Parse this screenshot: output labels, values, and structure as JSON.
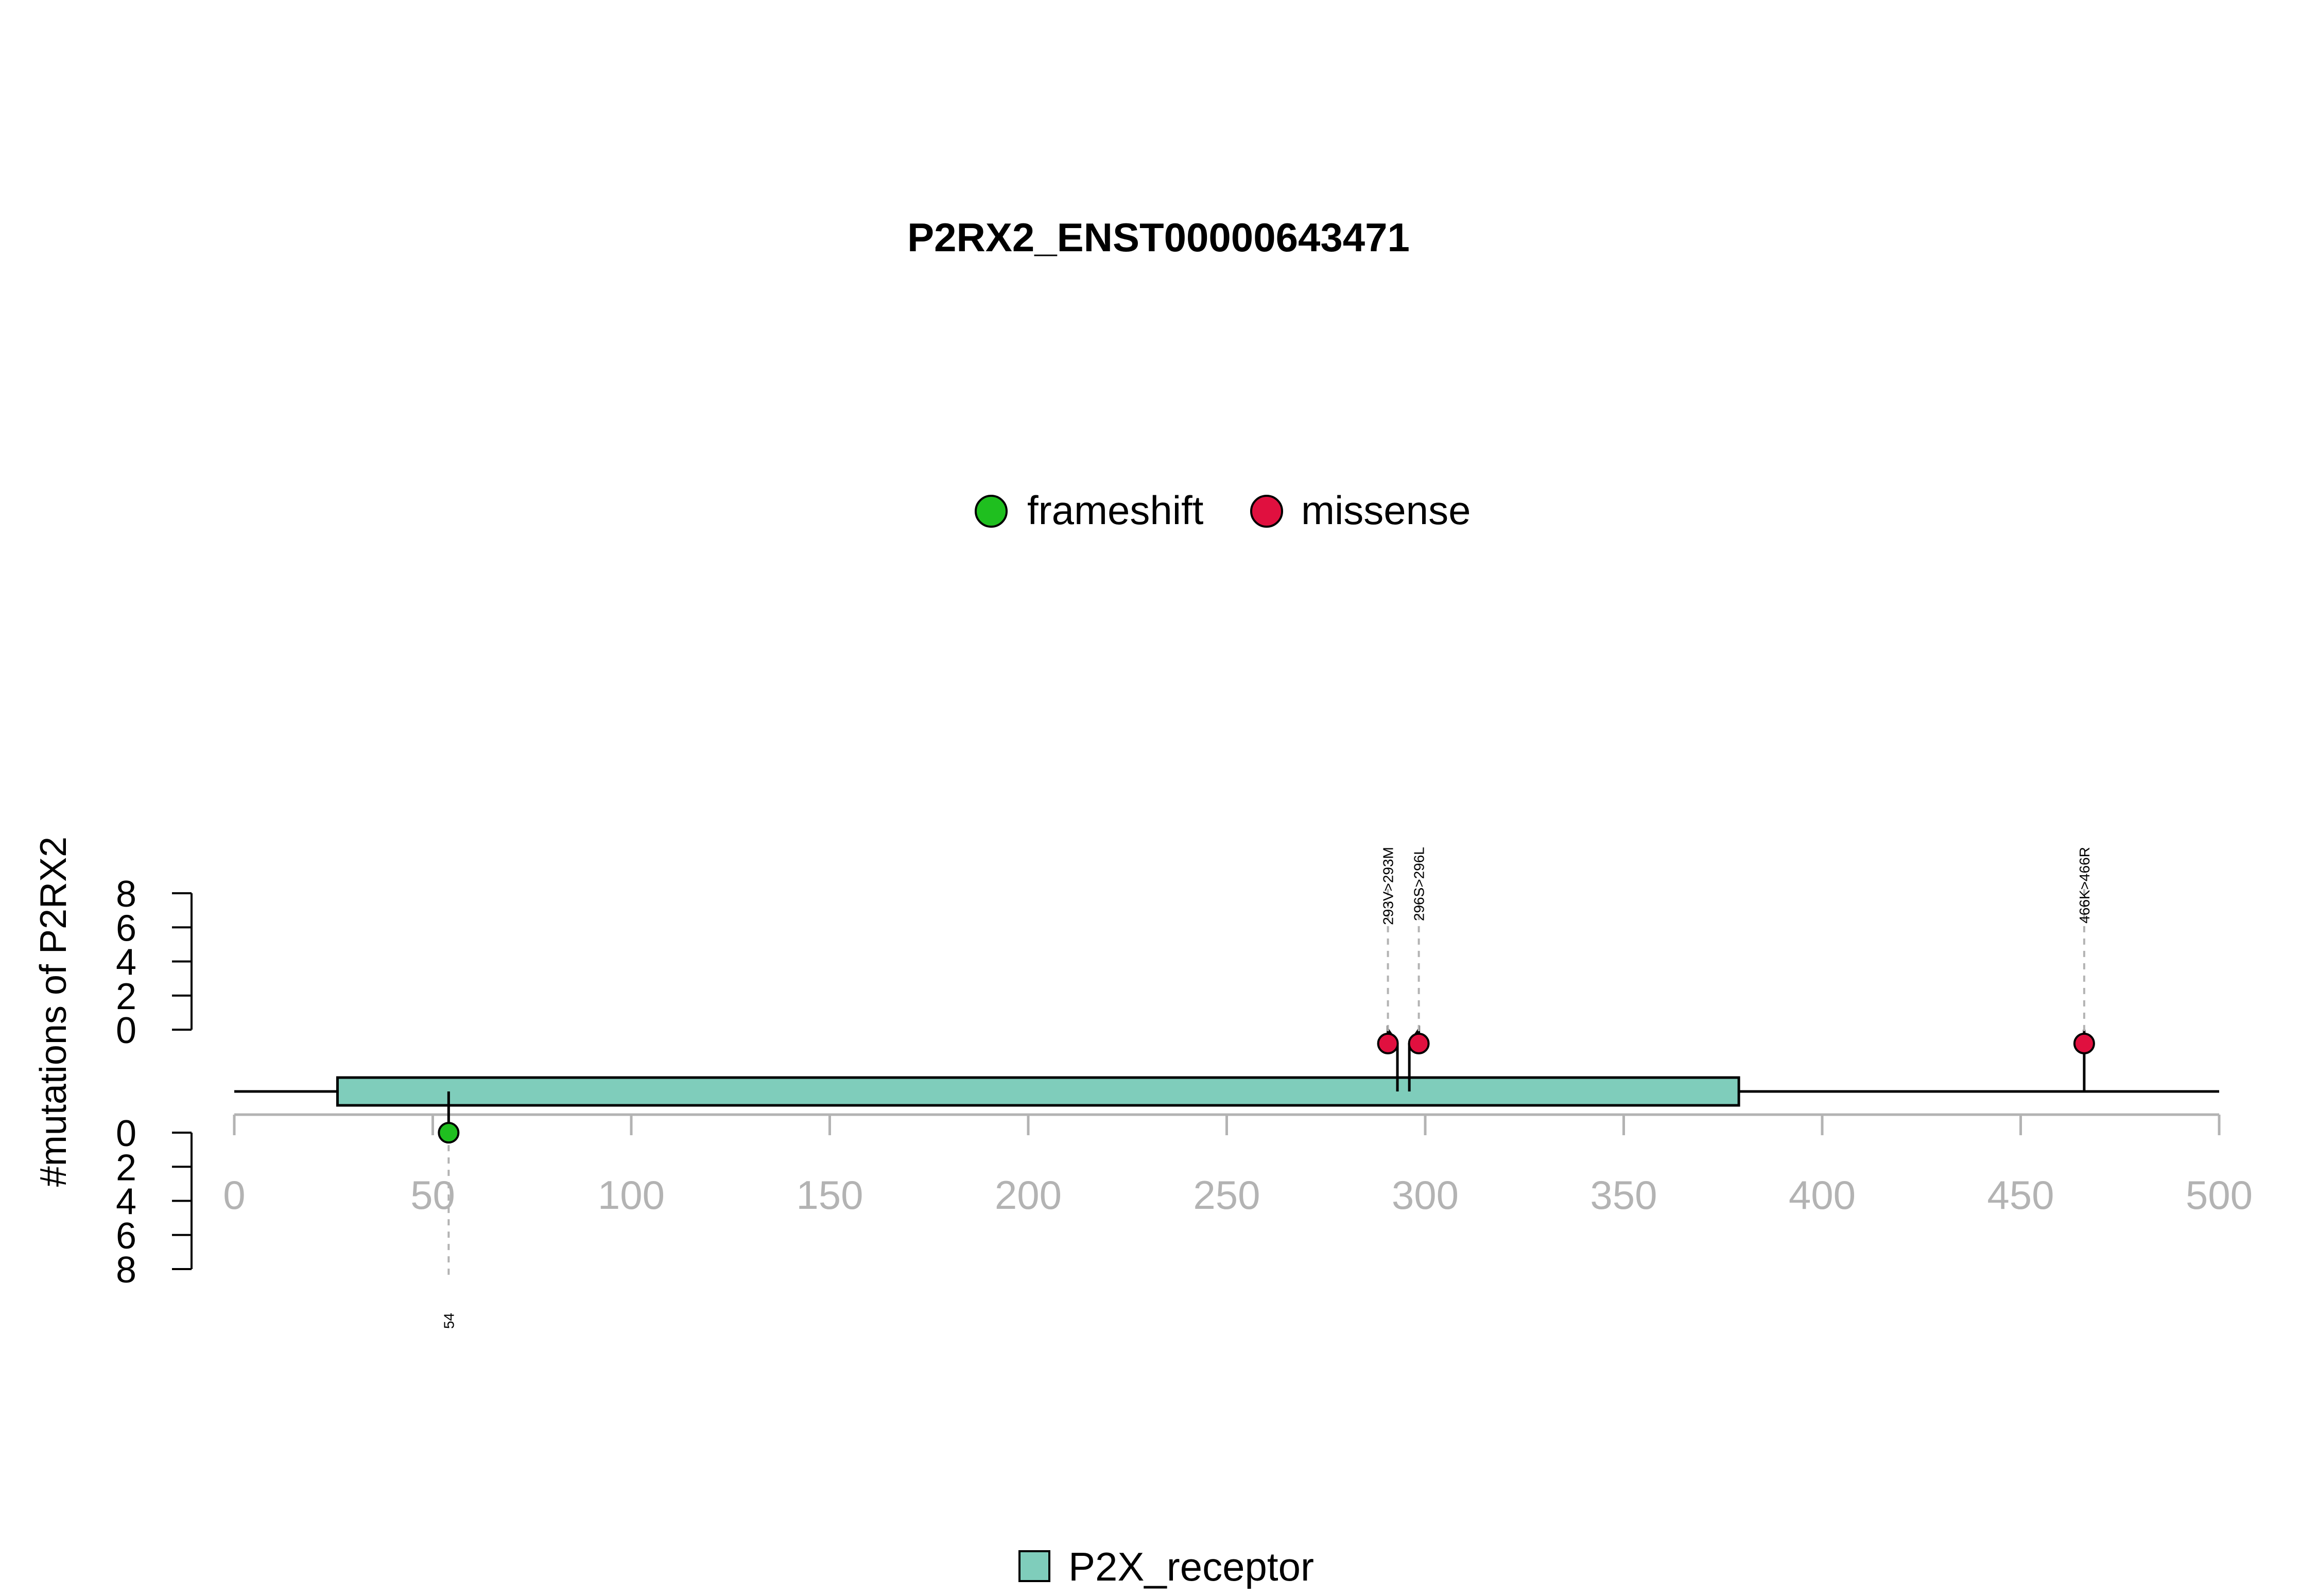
{
  "chart_data": {
    "type": "lollipop",
    "title": "P2RX2_ENST00000643471",
    "ylabel": "#mutations of P2RX2",
    "xlim": [
      0,
      500
    ],
    "x_ticks": [
      "0",
      "50",
      "100",
      "150",
      "200",
      "250",
      "300",
      "350",
      "400",
      "450",
      "500"
    ],
    "y_ticks_upper": [
      "0",
      "2",
      "4",
      "6",
      "8"
    ],
    "y_ticks_lower": [
      "0",
      "2",
      "4",
      "6",
      "8"
    ],
    "ylim": [
      0,
      8
    ],
    "legend_mutation": [
      {
        "label": "frameshift",
        "color": "#1fbf1f"
      },
      {
        "label": "missense",
        "color": "#e0103f"
      }
    ],
    "domains": [
      {
        "name": "P2X_receptor",
        "start": 26,
        "end": 379,
        "color": "#7fcdbb"
      }
    ],
    "protein_length": 500,
    "mutations": [
      {
        "position": 54,
        "label": "54",
        "type": "frameshift",
        "count": 1,
        "side": "lower"
      },
      {
        "position": 293,
        "label": "293V>293M",
        "type": "missense",
        "count": 1,
        "side": "upper"
      },
      {
        "position": 296,
        "label": "296S>296L",
        "type": "missense",
        "count": 1,
        "side": "upper"
      },
      {
        "position": 466,
        "label": "466K>466R",
        "type": "missense",
        "count": 1,
        "side": "upper"
      }
    ]
  }
}
